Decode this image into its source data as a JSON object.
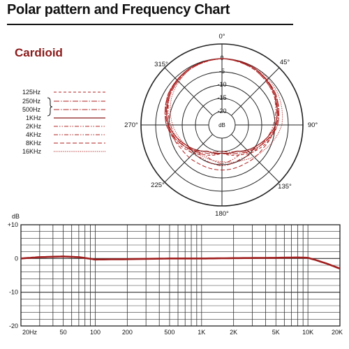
{
  "page": {
    "title": "Polar pattern and Frequency Chart",
    "pattern_name": "Cardioid"
  },
  "legend": [
    {
      "label": "125Hz",
      "color": "#b22222",
      "dash": "4,3",
      "width": 1
    },
    {
      "label": "250Hz",
      "color": "#b22222",
      "dash": "8,2,1.5,2",
      "width": 1
    },
    {
      "label": "500Hz",
      "color": "#b22222",
      "dash": "8,2,1.5,2",
      "width": 1
    },
    {
      "label": "1KHz",
      "color": "#8b1a1a",
      "dash": "",
      "width": 1.2
    },
    {
      "label": "2KHz",
      "color": "#b22222",
      "dash": "6,2,1.5,2,1.5,2",
      "width": 1
    },
    {
      "label": "4KHz",
      "color": "#b22222",
      "dash": "6,2,1.5,2,1.5,2",
      "width": 1
    },
    {
      "label": "8KHz",
      "color": "#b22222",
      "dash": "6,3",
      "width": 1
    },
    {
      "label": "16KHz",
      "color": "#b22222",
      "dash": "1.2,1.5",
      "width": 1
    }
  ],
  "chart_data": [
    {
      "type": "polar",
      "title": "Cardioid",
      "angle_labels": [
        "0°",
        "45°",
        "90°",
        "135°",
        "180°",
        "225°",
        "270°",
        "315°"
      ],
      "ring_labels": [
        "0",
        "-5",
        "-10",
        "-15",
        "-20",
        "dB"
      ],
      "r_range_db": [
        -25,
        0
      ],
      "series": [
        {
          "name": "125Hz",
          "angles_deg": [
            0,
            30,
            60,
            90,
            120,
            150,
            180,
            210,
            240,
            270,
            300,
            330
          ],
          "values_db": [
            0,
            -0.5,
            -2,
            -5,
            -10,
            -15,
            -18,
            -15,
            -10,
            -5,
            -2,
            -0.5
          ]
        },
        {
          "name": "250Hz",
          "angles_deg": [
            0,
            30,
            60,
            90,
            120,
            150,
            180,
            210,
            240,
            270,
            300,
            330
          ],
          "values_db": [
            0,
            -0.5,
            -2,
            -5,
            -11,
            -16,
            -18,
            -16,
            -11,
            -5,
            -2,
            -0.5
          ]
        },
        {
          "name": "500Hz",
          "angles_deg": [
            0,
            30,
            60,
            90,
            120,
            150,
            180,
            210,
            240,
            270,
            300,
            330
          ],
          "values_db": [
            0,
            -0.5,
            -2,
            -5.5,
            -11,
            -17,
            -19,
            -17,
            -11,
            -5.5,
            -2,
            -0.5
          ]
        },
        {
          "name": "1KHz",
          "angles_deg": [
            0,
            30,
            60,
            90,
            120,
            150,
            180,
            210,
            240,
            270,
            300,
            330
          ],
          "values_db": [
            0,
            -0.5,
            -2.5,
            -6,
            -12,
            -17,
            -18,
            -17,
            -12,
            -6,
            -2.5,
            -0.5
          ]
        },
        {
          "name": "2KHz",
          "angles_deg": [
            0,
            30,
            60,
            90,
            120,
            150,
            180,
            210,
            240,
            270,
            300,
            330
          ],
          "values_db": [
            0,
            -0.5,
            -2.5,
            -6,
            -12,
            -15,
            -13,
            -15,
            -12,
            -6,
            -2.5,
            -0.5
          ]
        },
        {
          "name": "4KHz",
          "angles_deg": [
            0,
            30,
            60,
            90,
            120,
            150,
            180,
            210,
            240,
            270,
            300,
            330
          ],
          "values_db": [
            0,
            -1,
            -3,
            -7,
            -11,
            -13,
            -12,
            -13,
            -11,
            -7,
            -3,
            -1
          ]
        },
        {
          "name": "8KHz",
          "angles_deg": [
            0,
            30,
            60,
            90,
            120,
            150,
            180,
            210,
            240,
            270,
            300,
            330
          ],
          "values_db": [
            0,
            -1,
            -3,
            -6,
            -9,
            -10,
            -10,
            -10,
            -9,
            -6,
            -3,
            -1
          ]
        },
        {
          "name": "16KHz",
          "angles_deg": [
            0,
            30,
            60,
            90,
            120,
            150,
            180,
            210,
            240,
            270,
            300,
            330
          ],
          "values_db": [
            0,
            0,
            -1,
            -3,
            -8,
            -12,
            -14,
            -14,
            -12,
            -8,
            -4,
            -1
          ]
        }
      ]
    },
    {
      "type": "line",
      "ylabel": "dB",
      "ylim": [
        -20,
        10
      ],
      "xlim": [
        20,
        20000
      ],
      "x_scale": "log",
      "y_ticks": [
        "+10",
        "0",
        "-10",
        "-20"
      ],
      "x_ticks": [
        "20Hz",
        "50",
        "100",
        "200",
        "500",
        "1K",
        "2K",
        "5K",
        "10K",
        "20K"
      ],
      "series": [
        {
          "x": [
            20,
            30,
            50,
            70,
            100,
            200,
            500,
            1000,
            2000,
            5000,
            8000,
            10000,
            12000,
            15000,
            20000
          ],
          "y": [
            0,
            0.4,
            0.6,
            0.4,
            -0.3,
            -0.2,
            0,
            0,
            0.1,
            0.2,
            0.3,
            0.2,
            -0.5,
            -1.5,
            -3
          ]
        }
      ]
    }
  ]
}
